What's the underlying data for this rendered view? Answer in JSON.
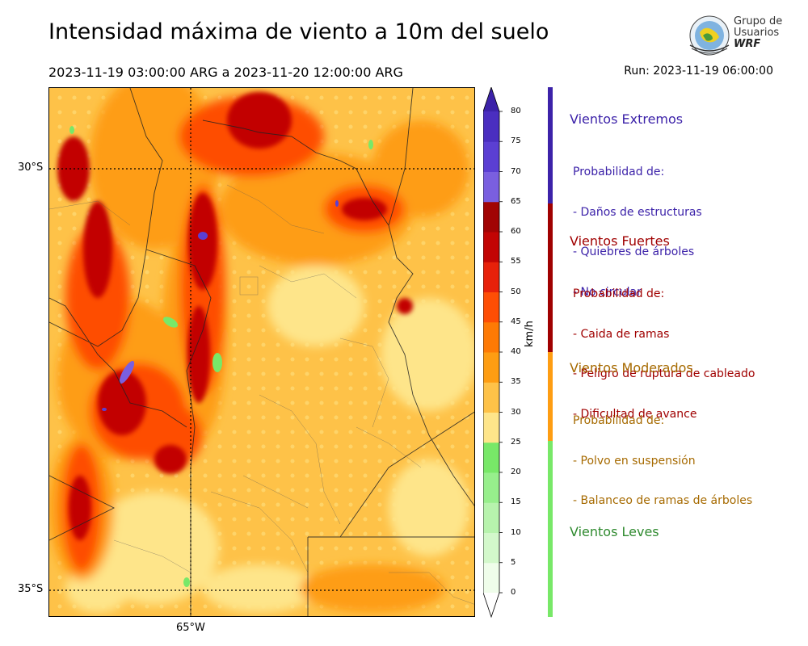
{
  "header": {
    "title": "Intensidad máxima de viento a 10m del suelo",
    "period": "2023-11-19 03:00:00 ARG  a  2023-11-20 12:00:00 ARG",
    "run": "Run: 2023-11-19 06:00:00"
  },
  "logo": {
    "line1": "Grupo de",
    "line2": "Usuarios",
    "line3": "WRF"
  },
  "map": {
    "lat_labels": [
      "30°S",
      "35°S"
    ],
    "lon_labels": [
      "65°W"
    ],
    "graticule_color": "#000000"
  },
  "colorbar": {
    "unit": "km/h",
    "ticks": [
      "0",
      "5",
      "10",
      "15",
      "20",
      "25",
      "30",
      "35",
      "40",
      "45",
      "50",
      "55",
      "60",
      "65",
      "70",
      "75",
      "80"
    ],
    "colors": [
      "#effdea",
      "#d3f8cb",
      "#b7f3ad",
      "#97ef8c",
      "#78e868",
      "#fee58a",
      "#fec248",
      "#fe9d12",
      "#fe7a05",
      "#fe4e05",
      "#e7210a",
      "#c20504",
      "#a10404",
      "#7a5fe0",
      "#5b3fd3",
      "#4a2ec0",
      "#3c22a9"
    ]
  },
  "categories": [
    {
      "title": "Vientos Extremos",
      "color": "#3c22a9",
      "body": [
        "Probabilidad de:",
        "- Daños de estructuras",
        "- Quiebres de árboles",
        "- No circular"
      ]
    },
    {
      "title": "Vientos Fuertes",
      "color": "#a00000",
      "body": [
        "Probabilidad de:",
        "- Caida de ramas",
        "- Peligro de ruptura de cableado",
        "- Dificultad de avance"
      ]
    },
    {
      "title": "Vientos Moderados",
      "color": "#a66a00",
      "bar_color": "#fe9d12",
      "body": [
        "Probabilidad de:",
        "- Polvo en suspensión",
        "- Balanceo de ramas de árboles"
      ]
    },
    {
      "title": "Vientos Leves",
      "color": "#2f8a2f",
      "bar_color": "#78e868",
      "body": []
    }
  ]
}
